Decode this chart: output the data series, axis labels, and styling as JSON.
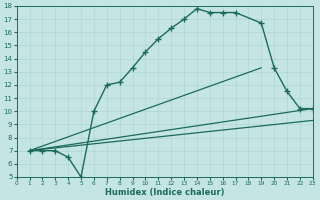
{
  "xlabel": "Humidex (Indice chaleur)",
  "bg_color": "#c5e5e5",
  "line_color": "#1a6b5a",
  "grid_color": "#b0d5d5",
  "xlim": [
    0,
    23
  ],
  "ylim": [
    5,
    18
  ],
  "yticks": [
    5,
    6,
    7,
    8,
    9,
    10,
    11,
    12,
    13,
    14,
    15,
    16,
    17,
    18
  ],
  "xticks": [
    0,
    1,
    2,
    3,
    4,
    5,
    6,
    7,
    8,
    9,
    10,
    11,
    12,
    13,
    14,
    15,
    16,
    17,
    18,
    19,
    20,
    21,
    22,
    23
  ],
  "main_x": [
    1,
    2,
    3,
    4,
    5,
    6,
    7,
    8,
    9,
    10,
    11,
    12,
    13,
    14,
    15,
    16,
    17,
    19,
    20,
    21,
    22,
    23
  ],
  "main_y": [
    7.0,
    7.0,
    7.0,
    6.5,
    5.0,
    10.0,
    12.0,
    12.2,
    13.3,
    14.5,
    15.5,
    16.3,
    17.0,
    17.8,
    17.5,
    17.5,
    17.5,
    16.7,
    13.3,
    11.5,
    10.2,
    10.2
  ],
  "line1_x": [
    1,
    19
  ],
  "line1_y": [
    7.0,
    13.3
  ],
  "line2_x": [
    1,
    23
  ],
  "line2_y": [
    7.0,
    10.2
  ],
  "line3_x": [
    1,
    23
  ],
  "line3_y": [
    7.0,
    9.3
  ]
}
